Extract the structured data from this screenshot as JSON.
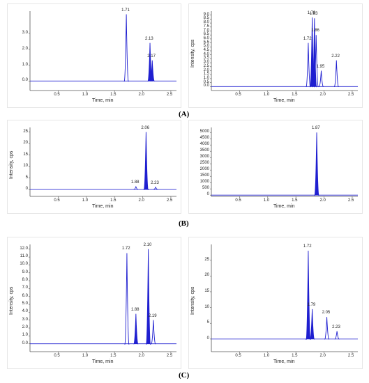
{
  "figure_labels": [
    "(A)",
    "(B)",
    "(C)"
  ],
  "colors": {
    "trace": "#1f1fd0",
    "axis": "#555555",
    "panel_border": "#e6e6e6"
  },
  "chart_data": [
    {
      "type": "line",
      "ylabel": "",
      "xlabel": "Time, min",
      "xlim": [
        0,
        2.6
      ],
      "ylim": [
        -0.6,
        4.4
      ],
      "xticks": [
        "0.5",
        "1.0",
        "1.5",
        "2.0",
        "2.5"
      ],
      "yticks": [
        "0.0",
        "1.0",
        "2.0",
        "3.0"
      ],
      "baseline": 0,
      "peaks": [
        {
          "t": 1.71,
          "h": 4.2,
          "label": "1.71",
          "fill": false
        },
        {
          "t": 2.13,
          "h": 2.4,
          "label": "2.13",
          "fill": true
        },
        {
          "t": 2.17,
          "h": 1.3,
          "label": "2.17",
          "fill": true
        }
      ]
    },
    {
      "type": "line",
      "ylabel": "Intensity, cps",
      "xlabel": "Time, min",
      "xlim": [
        0,
        2.6
      ],
      "ylim": [
        -0.5,
        9.5
      ],
      "xticks": [
        "0.5",
        "1.0",
        "1.5",
        "2.0",
        "2.5"
      ],
      "yticks": [
        "0.0",
        "0.5",
        "1.0",
        "1.5",
        "2.0",
        "2.5",
        "3.0",
        "3.5",
        "4.0",
        "4.5",
        "5.0",
        "5.5",
        "6.0",
        "6.5",
        "7.0",
        "7.5",
        "8.0",
        "8.5",
        "9.0"
      ],
      "ytick_step": 0.5,
      "baseline": 0,
      "peaks": [
        {
          "t": 1.72,
          "h": 5.5,
          "label": "1.72",
          "fill": false
        },
        {
          "t": 1.79,
          "h": 8.7,
          "label": "1.79",
          "fill": true
        },
        {
          "t": 1.83,
          "h": 8.6,
          "label": "1.83",
          "fill": true
        },
        {
          "t": 1.86,
          "h": 6.5,
          "label": "1.86",
          "fill": false
        },
        {
          "t": 1.95,
          "h": 2.0,
          "label": "1.95",
          "fill": false
        },
        {
          "t": 2.22,
          "h": 3.3,
          "label": "2.22",
          "fill": false
        }
      ]
    },
    {
      "type": "line",
      "ylabel": "Intensity, cps",
      "xlabel": "Time, min",
      "xlim": [
        0,
        2.6
      ],
      "ylim": [
        -3,
        27
      ],
      "xticks": [
        "0.5",
        "1.0",
        "1.5",
        "2.0",
        "2.5"
      ],
      "yticks": [
        "0",
        "5",
        "10",
        "15",
        "20",
        "25"
      ],
      "ytick_step": 5,
      "baseline": 0,
      "peaks": [
        {
          "t": 1.88,
          "h": 1.2,
          "label": "1.88",
          "fill": false
        },
        {
          "t": 2.06,
          "h": 25,
          "label": "2.06",
          "fill": true
        },
        {
          "t": 2.23,
          "h": 1.0,
          "label": "2.23",
          "fill": false
        }
      ]
    },
    {
      "type": "line",
      "ylabel": "",
      "xlabel": "Time, min",
      "xlim": [
        0,
        2.6
      ],
      "ylim": [
        -100,
        5400
      ],
      "xticks": [
        "0.5",
        "1.0",
        "1.5",
        "2.0",
        "2.5"
      ],
      "yticks": [
        "0",
        "500",
        "1000",
        "1500",
        "2000",
        "2500",
        "3000",
        "3500",
        "4000",
        "4500",
        "5000"
      ],
      "ytick_step": 500,
      "baseline": 0,
      "peaks": [
        {
          "t": 1.87,
          "h": 5000,
          "label": "1.87",
          "fill": true
        }
      ]
    },
    {
      "type": "line",
      "ylabel": "Intensity, cps",
      "xlabel": "Time, min",
      "xlim": [
        0,
        2.6
      ],
      "ylim": [
        -1,
        12.6
      ],
      "xticks": [
        "0.5",
        "1.0",
        "1.5",
        "2.0",
        "2.5"
      ],
      "yticks": [
        "0.0",
        "1.0",
        "2.0",
        "3.0",
        "4.0",
        "5.0",
        "6.0",
        "7.0",
        "8.0",
        "9.0",
        "10.0",
        "11.0",
        "12.0"
      ],
      "ytick_step": 1,
      "baseline": 0,
      "peaks": [
        {
          "t": 1.72,
          "h": 11.5,
          "label": "1.72",
          "fill": false
        },
        {
          "t": 1.88,
          "h": 3.8,
          "label": "1.88",
          "fill": true
        },
        {
          "t": 2.1,
          "h": 12.0,
          "label": "2.10",
          "fill": true
        },
        {
          "t": 2.19,
          "h": 3.0,
          "label": "2.19",
          "fill": false
        }
      ]
    },
    {
      "type": "line",
      "ylabel": "Intensity, cps",
      "xlabel": "Time, min",
      "xlim": [
        0,
        2.6
      ],
      "ylim": [
        -4,
        30
      ],
      "xticks": [
        "0.5",
        "1.0",
        "1.5",
        "2.0",
        "2.5"
      ],
      "yticks": [
        "0",
        "5",
        "10",
        "15",
        "20",
        "25"
      ],
      "ytick_step": 5,
      "baseline": 0,
      "peaks": [
        {
          "t": 1.72,
          "h": 28,
          "label": "1.72",
          "fill": true
        },
        {
          "t": 1.79,
          "h": 9.5,
          "label": "1.79",
          "fill": true
        },
        {
          "t": 2.05,
          "h": 7.0,
          "label": "2.05",
          "fill": false
        },
        {
          "t": 2.23,
          "h": 2.5,
          "label": "2.23",
          "fill": false
        }
      ]
    }
  ]
}
